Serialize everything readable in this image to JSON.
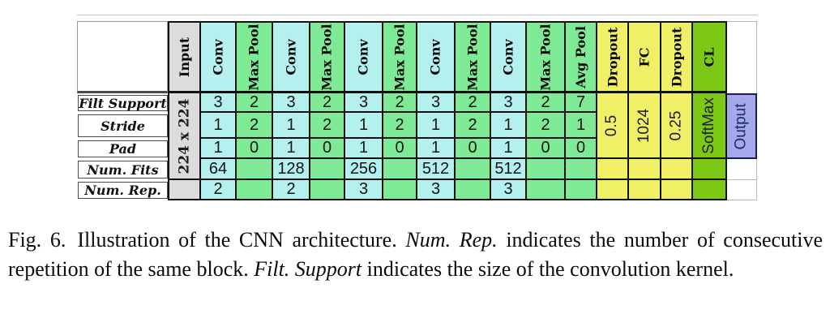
{
  "colors": {
    "cyan": "#b3f0ee",
    "green": "#7eea96",
    "yellow": "#f0f066",
    "cl_green": "#7cc814",
    "lavender": "#a3a9ea",
    "gray": "#dcdcdc",
    "white": "#ffffff"
  },
  "table": {
    "row_labels": [
      "Filt Support",
      "Stride",
      "Pad",
      "Num. Fits",
      "Num. Rep."
    ],
    "columns": [
      {
        "key": "input",
        "header": "Input",
        "bg": "gray",
        "cells": [
          {
            "rows": [
              1,
              4
            ],
            "text": "224 x 224",
            "rotated": true,
            "serif": true
          },
          {
            "rows": [
              5,
              5
            ],
            "text": ""
          }
        ]
      },
      {
        "key": "conv1",
        "header": "Conv",
        "bg": "cyan",
        "values": [
          "3",
          "1",
          "1",
          "64",
          "2"
        ]
      },
      {
        "key": "maxpool1",
        "header": "Max Pool",
        "bg": "green",
        "values": [
          "2",
          "2",
          "0",
          "",
          ""
        ]
      },
      {
        "key": "conv2",
        "header": "Conv",
        "bg": "cyan",
        "values": [
          "3",
          "1",
          "1",
          "128",
          "2"
        ]
      },
      {
        "key": "maxpool2",
        "header": "Max Pool",
        "bg": "green",
        "values": [
          "2",
          "2",
          "0",
          "",
          ""
        ]
      },
      {
        "key": "conv3",
        "header": "Conv",
        "bg": "cyan",
        "values": [
          "3",
          "1",
          "1",
          "256",
          "3"
        ]
      },
      {
        "key": "maxpool3",
        "header": "Max Pool",
        "bg": "green",
        "values": [
          "2",
          "2",
          "0",
          "",
          ""
        ]
      },
      {
        "key": "conv4",
        "header": "Conv",
        "bg": "cyan",
        "values": [
          "3",
          "1",
          "1",
          "512",
          "3"
        ]
      },
      {
        "key": "maxpool4",
        "header": "Max Pool",
        "bg": "green",
        "values": [
          "2",
          "2",
          "0",
          "",
          ""
        ]
      },
      {
        "key": "conv5",
        "header": "Conv",
        "bg": "cyan",
        "values": [
          "3",
          "1",
          "1",
          "512",
          "3"
        ]
      },
      {
        "key": "maxpool5",
        "header": "Max Pool",
        "bg": "green",
        "values": [
          "2",
          "2",
          "0",
          "",
          ""
        ]
      },
      {
        "key": "avgpool",
        "header": "Avg Pool",
        "bg": "green",
        "values": [
          "7",
          "1",
          "0",
          "",
          ""
        ]
      },
      {
        "key": "dropout1",
        "header": "Dropout",
        "bg": "yellow",
        "cells": [
          {
            "rows": [
              1,
              3
            ],
            "text": "0.5",
            "rotated": true
          },
          {
            "rows": [
              4,
              4
            ],
            "text": ""
          },
          {
            "rows": [
              5,
              5
            ],
            "text": ""
          }
        ]
      },
      {
        "key": "fc",
        "header": "FC",
        "bg": "yellow",
        "cells": [
          {
            "rows": [
              1,
              3
            ],
            "text": "1024",
            "rotated": true
          },
          {
            "rows": [
              4,
              4
            ],
            "text": ""
          },
          {
            "rows": [
              5,
              5
            ],
            "text": ""
          }
        ]
      },
      {
        "key": "dropout2",
        "header": "Dropout",
        "bg": "yellow",
        "cells": [
          {
            "rows": [
              1,
              3
            ],
            "text": "0.25",
            "rotated": true
          },
          {
            "rows": [
              4,
              4
            ],
            "text": ""
          },
          {
            "rows": [
              5,
              5
            ],
            "text": ""
          }
        ]
      },
      {
        "key": "cl",
        "header": "CL",
        "bg": "cl_green",
        "cells": [
          {
            "rows": [
              1,
              3
            ],
            "text": "SoftMax",
            "rotated": true,
            "text_color": "#20203a"
          },
          {
            "rows": [
              4,
              4
            ],
            "text": ""
          },
          {
            "rows": [
              5,
              5
            ],
            "text": ""
          }
        ]
      },
      {
        "key": "output",
        "header": "",
        "bg": "white",
        "cells": [
          {
            "rows": [
              1,
              3
            ],
            "text": "Output",
            "rotated": true,
            "bg": "lavender",
            "text_color": "#1c2a66"
          },
          {
            "rows": [
              4,
              4
            ],
            "text": ""
          },
          {
            "rows": [
              5,
              5
            ],
            "text": ""
          }
        ]
      }
    ]
  },
  "caption": {
    "label": "Fig. 6.",
    "part1": "Illustration of the CNN architecture.",
    "italic1": "Num. Rep.",
    "part2": "indicates the number of consecutive repetition of the same block.",
    "italic2": "Filt. Support",
    "part3": "indicates the size of the convolution kernel."
  }
}
